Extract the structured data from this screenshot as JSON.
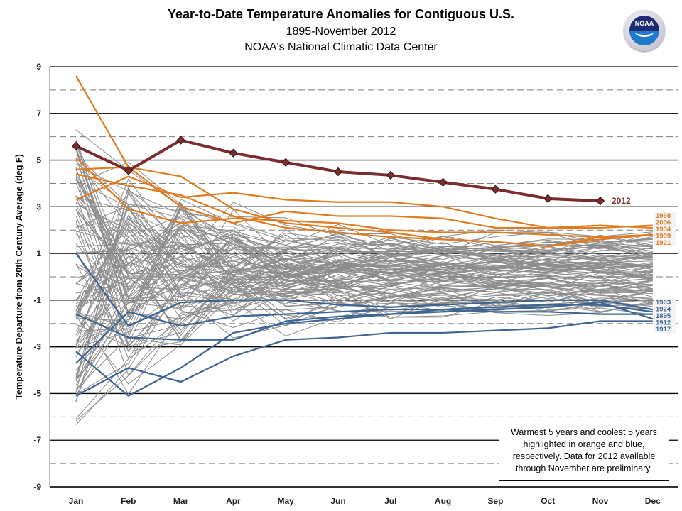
{
  "chart_data": {
    "type": "line",
    "title": "Year-to-Date  Temperature Anomalies  for Contiguous  U.S.",
    "subtitle": "1895-November 2012",
    "source": "NOAA's National Climatic  Data Center",
    "xlabel": "",
    "ylabel": "Temperature Departure from 20th Century Average (deg F)",
    "ylim": [
      -9,
      9
    ],
    "yticks": [
      9,
      7,
      5,
      3,
      1,
      -1,
      -3,
      -5,
      -7,
      -9
    ],
    "minor_gridlines": [
      8,
      6,
      4,
      2,
      0,
      -2,
      -4,
      -6,
      -8
    ],
    "grid": true,
    "categories": [
      "Jan",
      "Feb",
      "Mar",
      "Apr",
      "May",
      "Jun",
      "Jul",
      "Aug",
      "Sep",
      "Oct",
      "Nov",
      "Dec"
    ],
    "highlight_series": [
      {
        "name": "2012",
        "group": "current",
        "color": "#7b2d2d",
        "values": [
          5.6,
          4.55,
          5.85,
          5.3,
          4.9,
          4.5,
          4.35,
          4.05,
          3.75,
          3.35,
          3.25,
          null
        ]
      },
      {
        "name": "1998",
        "group": "warmest",
        "color": "#e07b20",
        "values": [
          3.3,
          4.3,
          3.4,
          3.6,
          3.3,
          3.2,
          3.2,
          3.0,
          2.5,
          2.1,
          2.1,
          2.2
        ]
      },
      {
        "name": "2006",
        "group": "warmest",
        "color": "#e07b20",
        "values": [
          8.6,
          4.7,
          3.0,
          2.3,
          2.8,
          2.6,
          2.6,
          2.5,
          2.1,
          2.1,
          2.2,
          2.1
        ]
      },
      {
        "name": "1934",
        "group": "warmest",
        "color": "#e07b20",
        "values": [
          4.6,
          4.7,
          4.3,
          2.9,
          2.3,
          2.1,
          1.9,
          1.6,
          1.5,
          1.3,
          1.7,
          1.8
        ]
      },
      {
        "name": "1999",
        "group": "warmest",
        "color": "#e07b20",
        "values": [
          5.1,
          2.9,
          2.3,
          2.5,
          2.4,
          2.3,
          2.0,
          1.9,
          1.9,
          1.8,
          1.7,
          1.8
        ]
      },
      {
        "name": "1921",
        "group": "warmest",
        "color": "#e07b20",
        "values": [
          4.4,
          3.9,
          3.5,
          2.6,
          2.1,
          1.9,
          1.7,
          1.6,
          1.5,
          1.3,
          1.6,
          1.8
        ]
      },
      {
        "name": "1903",
        "group": "coolest",
        "color": "#3d6594",
        "values": [
          1.0,
          -2.1,
          -1.1,
          -1.0,
          -1.0,
          -1.2,
          -1.3,
          -1.2,
          -1.1,
          -1.0,
          -1.0,
          -1.4
        ]
      },
      {
        "name": "1924",
        "group": "coolest",
        "color": "#3d6594",
        "values": [
          -1.6,
          -2.6,
          -2.7,
          -2.7,
          -1.9,
          -1.7,
          -1.6,
          -1.4,
          -1.3,
          -1.2,
          -1.2,
          -1.5
        ]
      },
      {
        "name": "1895",
        "group": "coolest",
        "color": "#3d6594",
        "values": [
          -3.7,
          -1.5,
          -2.1,
          -1.7,
          -1.6,
          -1.5,
          -1.4,
          -1.4,
          -1.5,
          -1.5,
          -1.6,
          -1.6
        ]
      },
      {
        "name": "1912",
        "group": "coolest",
        "color": "#3d6594",
        "values": [
          -3.2,
          -5.1,
          -3.9,
          -2.4,
          -2.0,
          -1.8,
          -1.6,
          -1.5,
          -1.4,
          -1.3,
          -1.1,
          -1.8
        ]
      },
      {
        "name": "1917",
        "group": "coolest",
        "color": "#3d6594",
        "values": [
          -5.1,
          -3.9,
          -4.5,
          -3.4,
          -2.7,
          -2.6,
          -2.4,
          -2.4,
          -2.3,
          -2.2,
          -1.9,
          -1.9
        ]
      }
    ],
    "background_series_note": "remaining years 1895-2011 drawn as thin gray lines",
    "end_labels": {
      "warmest": [
        "1998",
        "2006",
        "1934",
        "1999",
        "1921"
      ],
      "coolest": [
        "1903",
        "1924",
        "1895",
        "1912",
        "1917"
      ],
      "current": "2012"
    },
    "colors": {
      "warm": "#e07b20",
      "cool": "#3d6594",
      "current": "#7b2d2d",
      "background": "#8c8c8c"
    },
    "annotation": "Warmest 5 years and coolest 5 years highlighted in orange and blue, respectively. Data for 2012  available through November are preliminary."
  },
  "logo": {
    "text": "NOAA"
  }
}
